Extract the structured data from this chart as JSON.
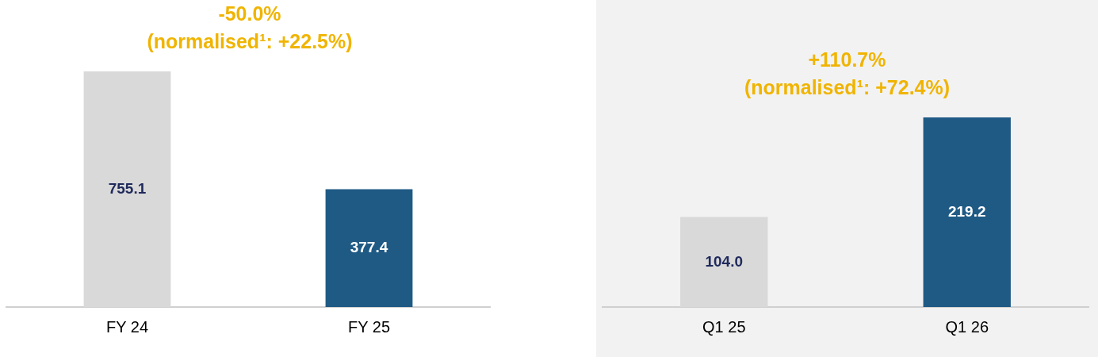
{
  "chart_data": [
    {
      "type": "bar",
      "title": "-50.0%",
      "subtitle": "(normalised¹: +22.5%)",
      "categories": [
        "FY 24",
        "FY 25"
      ],
      "values": [
        755.1,
        377.4
      ],
      "value_labels": [
        "755.1",
        "377.4"
      ],
      "colors": [
        "#d9d9d9",
        "#1f5a85"
      ]
    },
    {
      "type": "bar",
      "title": "+110.7%",
      "subtitle": "(normalised¹: +72.4%)",
      "categories": [
        "Q1 25",
        "Q1 26"
      ],
      "values": [
        104.0,
        219.2
      ],
      "value_labels": [
        "104.0",
        "219.2"
      ],
      "colors": [
        "#d9d9d9",
        "#1f5a85"
      ]
    }
  ]
}
